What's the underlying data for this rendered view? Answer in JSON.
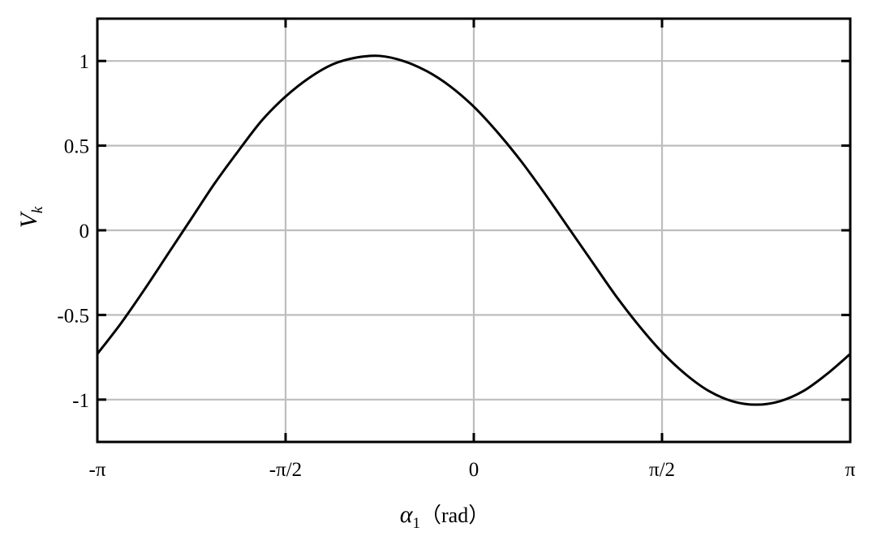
{
  "chart_data": {
    "type": "line",
    "xlabel": {
      "symbol": "α",
      "subscript": "1",
      "unit": "（rad）"
    },
    "ylabel": {
      "symbol": "V",
      "subscript": "k"
    },
    "xlim": [
      -3.14159,
      3.14159
    ],
    "ylim": [
      -1.25,
      1.25
    ],
    "x_ticks": [
      {
        "value": -3.14159,
        "label": "-π"
      },
      {
        "value": -1.5708,
        "label": "-π/2"
      },
      {
        "value": 0,
        "label": "0"
      },
      {
        "value": 1.5708,
        "label": "π/2"
      },
      {
        "value": 3.14159,
        "label": "π"
      }
    ],
    "y_ticks": [
      {
        "value": 1,
        "label": "1"
      },
      {
        "value": 0.5,
        "label": "0.5"
      },
      {
        "value": 0,
        "label": "0"
      },
      {
        "value": -0.5,
        "label": "-0.5"
      },
      {
        "value": -1,
        "label": "-1"
      }
    ],
    "grid": true,
    "series": [
      {
        "color": "#000000",
        "x": [
          -3.1416,
          -2.9452,
          -2.7489,
          -2.5525,
          -2.3562,
          -2.1598,
          -1.9635,
          -1.7671,
          -1.5708,
          -1.3744,
          -1.1781,
          -0.9817,
          -0.7854,
          -0.589,
          -0.3927,
          -0.1963,
          0,
          0.1963,
          0.3927,
          0.589,
          0.7854,
          0.9817,
          1.1781,
          1.3744,
          1.5708,
          1.7671,
          1.9635,
          2.1598,
          2.3562,
          2.5525,
          2.7489,
          2.9452,
          3.1416
        ],
        "y": [
          -0.73,
          -0.55,
          -0.35,
          -0.14,
          0.07,
          0.28,
          0.47,
          0.65,
          0.79,
          0.9,
          0.98,
          1.02,
          1.03,
          1.0,
          0.94,
          0.85,
          0.73,
          0.58,
          0.41,
          0.22,
          0.02,
          -0.18,
          -0.38,
          -0.56,
          -0.72,
          -0.85,
          -0.95,
          -1.01,
          -1.03,
          -1.01,
          -0.95,
          -0.85,
          -0.73
        ]
      }
    ]
  }
}
